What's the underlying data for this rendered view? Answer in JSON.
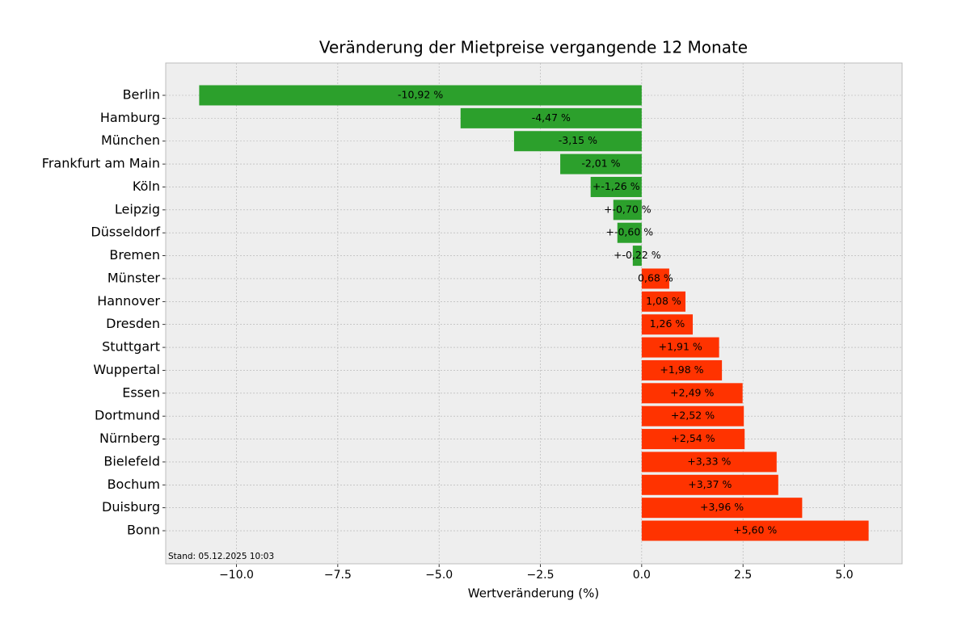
{
  "chart_data": {
    "type": "barh",
    "title": "Veränderung der Mietpreise vergangende 12 Monate",
    "x_label": "Wertveränderung (%)",
    "annotation": "Stand: 05.12.2025 10:03",
    "categories": [
      "Berlin",
      "Hamburg",
      "München",
      "Frankfurt am Main",
      "Köln",
      "Leipzig",
      "Düsseldorf",
      "Bremen",
      "Münster",
      "Hannover",
      "Dresden",
      "Stuttgart",
      "Wuppertal",
      "Essen",
      "Dortmund",
      "Nürnberg",
      "Bielefeld",
      "Bochum",
      "Duisburg",
      "Bonn"
    ],
    "values": [
      -10.92,
      -4.47,
      -3.15,
      -2.01,
      -1.26,
      -0.7,
      -0.6,
      -0.22,
      0.68,
      1.08,
      1.26,
      1.91,
      1.98,
      2.49,
      2.52,
      2.54,
      3.33,
      3.37,
      3.96,
      5.6
    ],
    "value_labels": [
      "-10,92 %",
      "-4,47 %",
      "-3,15 %",
      "-2,01 %",
      "+-1,26 %",
      "+-0,70 %",
      "+-0,60 %",
      "+-0,22 %",
      "0,68 %",
      "1,08 %",
      "1,26 %",
      "+1,91 %",
      "+1,98 %",
      "+2,49 %",
      "+2,52 %",
      "+2,54 %",
      "+3,33 %",
      "+3,37 %",
      "+3,96 %",
      "+5,60 %"
    ],
    "negative_color": "#2ca02c",
    "positive_color": "#ff3300",
    "xlim": [
      -11.746,
      6.426
    ],
    "xticks": [
      {
        "value": -10,
        "label": "−10.0"
      },
      {
        "value": -7.5,
        "label": "−7.5"
      },
      {
        "value": -5,
        "label": "−5.0"
      },
      {
        "value": -2.5,
        "label": "−2.5"
      },
      {
        "value": 0,
        "label": "0.0"
      },
      2.5,
      {
        "value": 5,
        "label": "5.0"
      }
    ],
    "grid": true
  }
}
